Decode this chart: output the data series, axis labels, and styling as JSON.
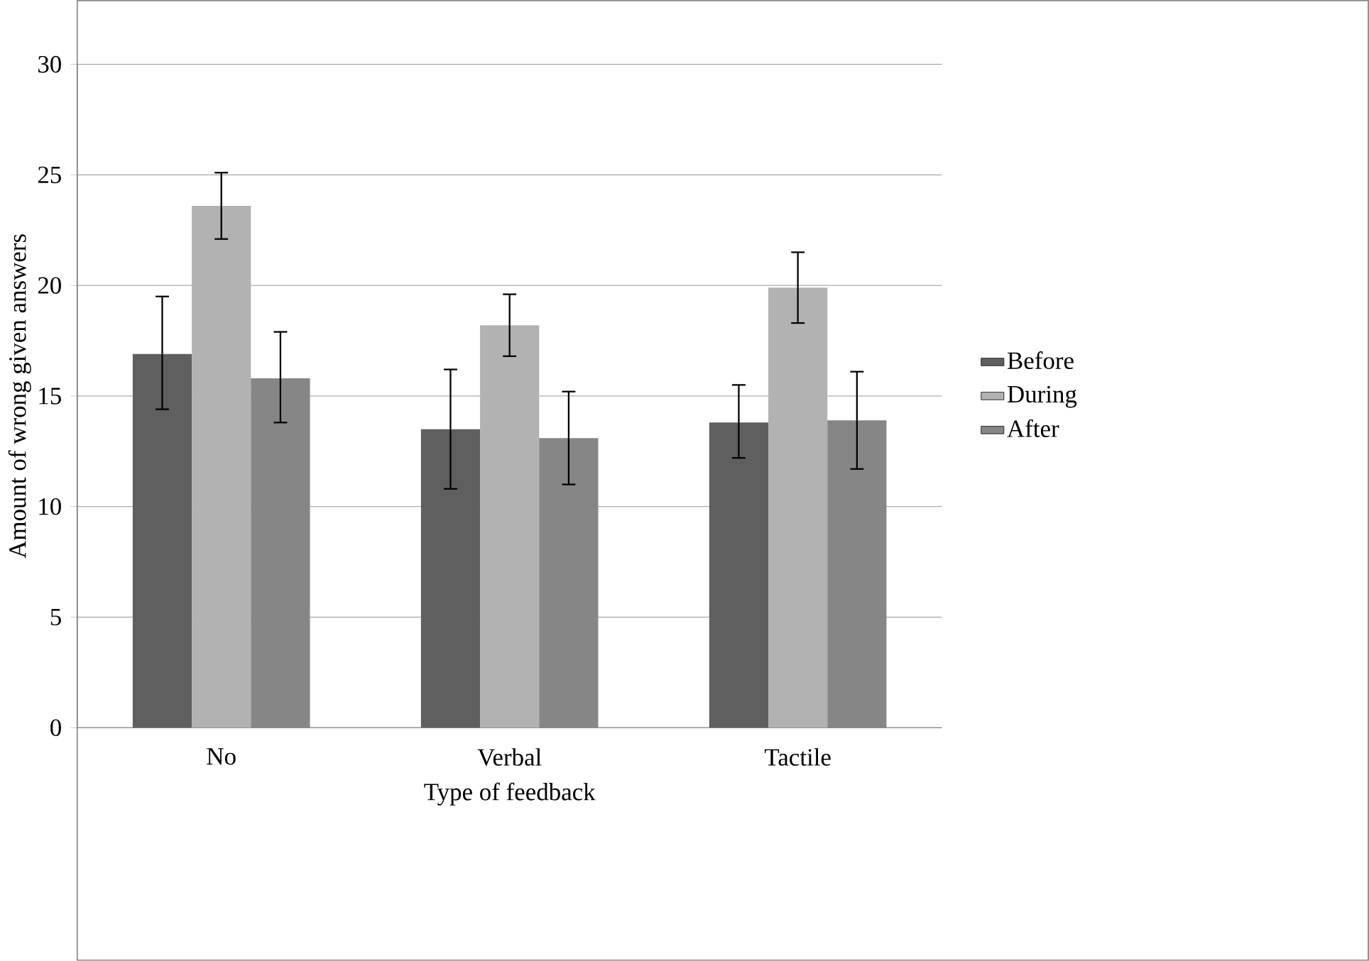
{
  "chart_data": {
    "type": "bar",
    "xlabel": "Type of feedback",
    "ylabel": "Amount of wrong given answers",
    "categories": [
      "No",
      "Verbal",
      "Tactile"
    ],
    "series": [
      {
        "name": "Before",
        "color": "#5f5f5f",
        "values": [
          16.9,
          13.5,
          13.8
        ],
        "errors": [
          [
            14.4,
            19.5
          ],
          [
            10.8,
            16.2
          ],
          [
            12.2,
            15.5
          ]
        ]
      },
      {
        "name": "During",
        "color": "#b2b2b2",
        "values": [
          23.6,
          18.2,
          19.9
        ],
        "errors": [
          [
            22.1,
            25.1
          ],
          [
            16.8,
            19.6
          ],
          [
            18.3,
            21.5
          ]
        ]
      },
      {
        "name": "After",
        "color": "#868686",
        "values": [
          15.8,
          13.1,
          13.9
        ],
        "errors": [
          [
            13.8,
            17.9
          ],
          [
            11.0,
            15.2
          ],
          [
            11.7,
            16.1
          ]
        ]
      }
    ],
    "ylim": [
      0,
      30
    ],
    "yticks": [
      0,
      5,
      10,
      15,
      20,
      25,
      30
    ],
    "grid": "y",
    "legend": "right"
  }
}
